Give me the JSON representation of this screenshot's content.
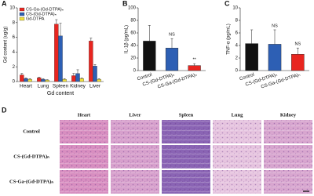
{
  "chart_data": [
    {
      "type": "bar",
      "panel": "A",
      "y_label": "Gd content (ug/g)",
      "x_label": "Gd content",
      "categories": [
        "Heart",
        "Lung",
        "Spleen",
        "Kidney",
        "Liver"
      ],
      "series": [
        {
          "name": "CS-Ga-(Gd-DTPA)ₙ",
          "color": "#e8251f",
          "values": [
            0.9,
            0.5,
            7.8,
            0.8,
            5.5
          ],
          "errors": [
            0.2,
            0.1,
            0.6,
            0.3,
            0.4
          ]
        },
        {
          "name": "CS-(Gd-DTPA)ₙ",
          "color": "#2d5fb4",
          "values": [
            0.4,
            0.3,
            6.2,
            1.1,
            2.1
          ],
          "errors": [
            0.1,
            0.1,
            1.7,
            0.5,
            0.2
          ]
        },
        {
          "name": "Gd-DTPA",
          "color": "#f2e13a",
          "values": [
            0.3,
            0.2,
            0.3,
            0.4,
            0.3
          ],
          "errors": [
            0.1,
            0.05,
            0.1,
            0.1,
            0.1
          ]
        }
      ],
      "ylim": [
        0,
        10
      ],
      "yticks": [
        0,
        2,
        4,
        6,
        8,
        10
      ]
    },
    {
      "type": "bar",
      "panel": "B",
      "y_label": "IL-1β (pg/mL)",
      "categories": [
        "Control",
        "CS-(Gd-DTPA)ₙ",
        "CS-Ga-(Gd-DTPA)ₙ"
      ],
      "values": [
        47,
        36,
        8
      ],
      "errors": [
        25,
        15,
        3
      ],
      "colors": [
        "#111111",
        "#2d5fb4",
        "#e8251f"
      ],
      "annotations": [
        null,
        "NS",
        "**"
      ],
      "ylim": [
        0,
        100
      ],
      "yticks": [
        0,
        20,
        40,
        60,
        80,
        100
      ]
    },
    {
      "type": "bar",
      "panel": "C",
      "y_label": "TNF-α (pg/mL)",
      "categories": [
        "Control",
        "CS-(Gd-DTPA)ₙ",
        "CS-Ga-(Gd-DTPA)ₙ"
      ],
      "values": [
        4.3,
        4.2,
        2.6
      ],
      "errors": [
        2.2,
        2.3,
        1.0
      ],
      "colors": [
        "#111111",
        "#2d5fb4",
        "#e8251f"
      ],
      "annotations": [
        null,
        "NS",
        "NS"
      ],
      "ylim": [
        0,
        10
      ],
      "yticks": [
        0,
        2,
        4,
        6,
        8,
        10
      ]
    }
  ],
  "histology": {
    "panel": "D",
    "columns": [
      "Heart",
      "Liver",
      "Spleen",
      "Lung",
      "Kidney"
    ],
    "rows": [
      "Control",
      "CS-(Gd-DTPA)ₙ",
      "CS-Ga-(Gd-DTPA)ₙ"
    ]
  }
}
